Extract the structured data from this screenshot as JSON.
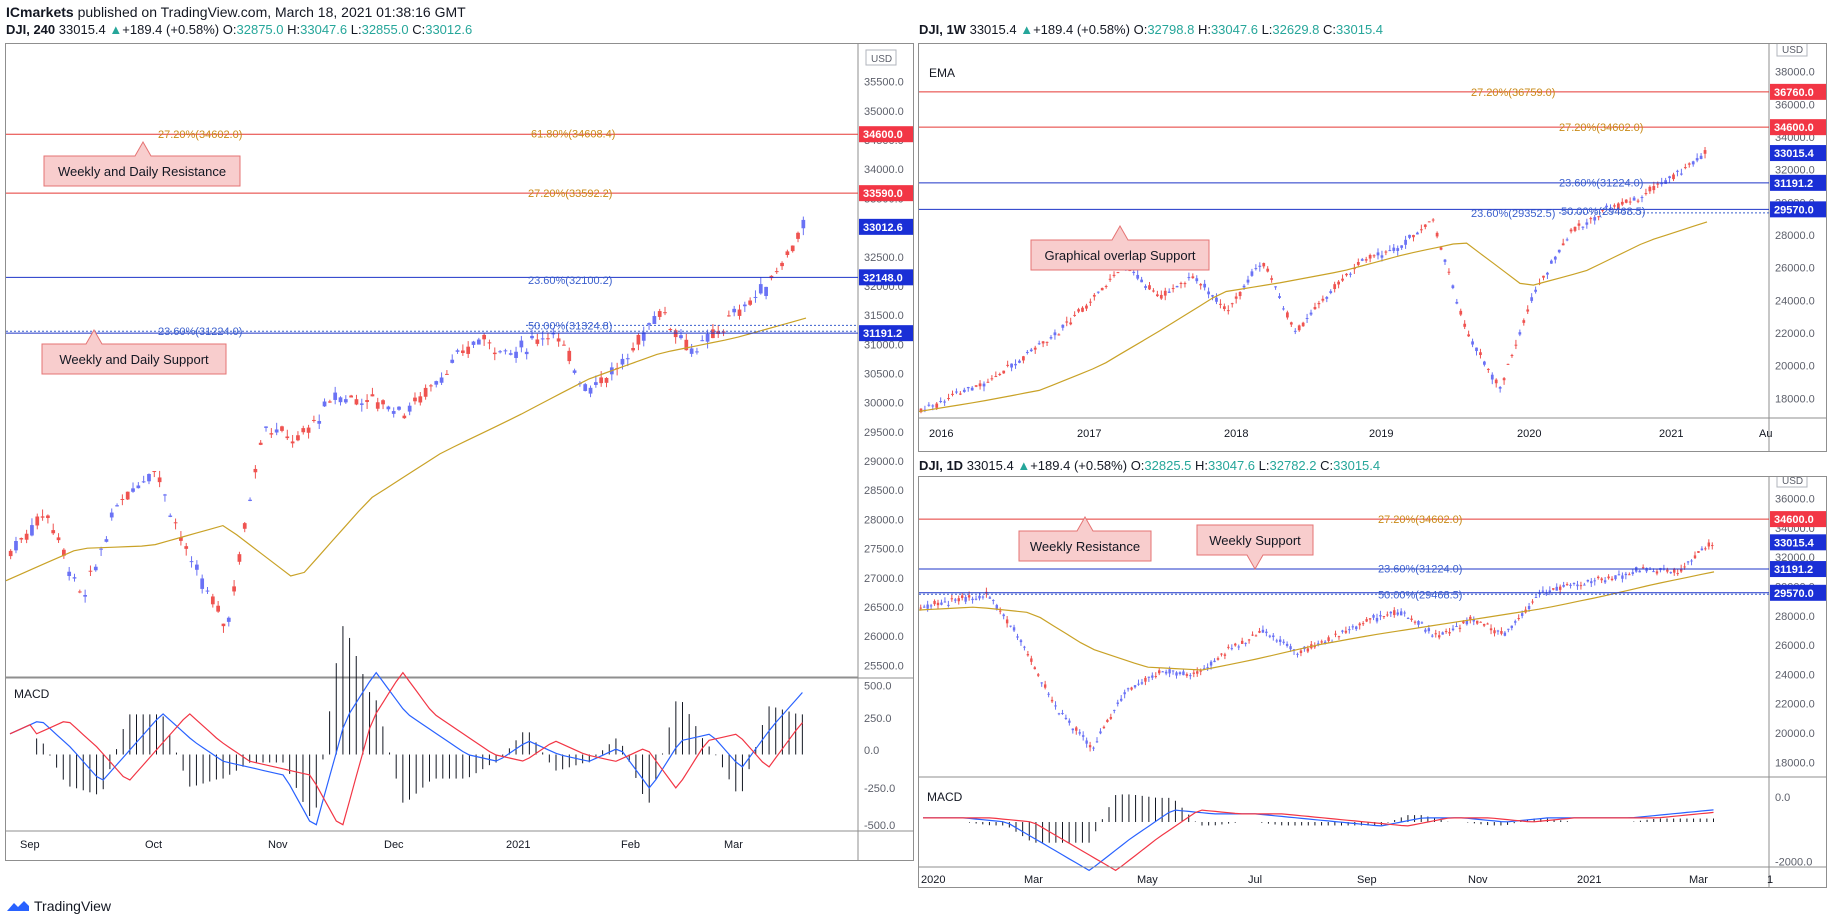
{
  "header": {
    "publisher": "ICmarkets",
    "rest": " published on TradingView.com, March 18, 2021 01:38:16 GMT"
  },
  "footer": {
    "brand": "TradingView"
  },
  "colors": {
    "up": "#6a72f5",
    "down": "#ef5350",
    "ema": "#c9a227",
    "red_line": "#e53935",
    "blue_line": "#1e35c8",
    "fib": "#c98a17",
    "fib_blue": "#3a5fcd",
    "macd": "#2962ff",
    "signal": "#f23645"
  },
  "left": {
    "info": {
      "sym": "DJI, 240",
      "last": "33015.4",
      "change": "+189.4 (+0.58%)",
      "o": "32875.0",
      "h": "33047.6",
      "l": "32855.0",
      "c": "33012.6"
    },
    "currency": "USD",
    "yticks": [
      "35500.0",
      "35000.0",
      "34500.0",
      "34000.0",
      "33500.0",
      "33000.0",
      "32500.0",
      "32000.0",
      "31500.0",
      "31000.0",
      "30500.0",
      "30000.0",
      "29500.0",
      "29000.0",
      "28500.0",
      "28000.0",
      "27500.0",
      "27000.0",
      "26500.0",
      "26000.0",
      "25500.0"
    ],
    "price_tags": [
      {
        "label": "34600.0",
        "kind": "red",
        "value": 34600
      },
      {
        "label": "33590.0",
        "kind": "red",
        "value": 33590
      },
      {
        "label": "33012.6",
        "kind": "blue",
        "value": 33012.6
      },
      {
        "label": "32148.0",
        "kind": "blue",
        "value": 32148
      },
      {
        "label": "31191.2",
        "kind": "blue",
        "value": 31191.2
      }
    ],
    "fib_labels": [
      "27.20%(34602.0)",
      "61.80%(34608.4)",
      "27.20%(33592.2)",
      "23.60%(32100.2)",
      "23.60%(31224.0)",
      "50.00%(31324.8)"
    ],
    "callouts": [
      "Weekly and Daily Resistance",
      "Weekly and Daily Support"
    ],
    "macd_title": "MACD",
    "macd_ticks": [
      "500.0",
      "250.0",
      "0.0",
      "-250.0",
      "-500.0"
    ],
    "xlabels": [
      "Sep",
      "Oct",
      "Nov",
      "Dec",
      "2021",
      "Feb",
      "Mar"
    ]
  },
  "tr": {
    "info": {
      "sym": "DJI, 1W",
      "last": "33015.4",
      "change": "+189.4 (+0.58%)",
      "o": "32798.8",
      "h": "33047.6",
      "l": "32629.8",
      "c": "33015.4"
    },
    "currency": "USD",
    "study": "EMA",
    "yticks": [
      "38000.0",
      "36000.0",
      "34000.0",
      "32000.0",
      "30000.0",
      "28000.0",
      "26000.0",
      "24000.0",
      "22000.0",
      "20000.0",
      "18000.0"
    ],
    "price_tags": [
      {
        "label": "36760.0",
        "kind": "red",
        "value": 36760
      },
      {
        "label": "34600.0",
        "kind": "red",
        "value": 34600
      },
      {
        "label": "33015.4",
        "kind": "blue",
        "value": 33015.4
      },
      {
        "label": "31191.2",
        "kind": "blue",
        "value": 31191.2
      },
      {
        "label": "29570.0",
        "kind": "blue",
        "value": 29570
      }
    ],
    "fib_labels": [
      "27.20%(36759.0)",
      "27.20%(34602.0)",
      "23.60%(31224.0)",
      "23.60%(29352.5)",
      "50.00%(29468.5)"
    ],
    "callouts": [
      "Graphical overlap Support"
    ],
    "xlabels": [
      "2016",
      "2017",
      "2018",
      "2019",
      "2020",
      "2021",
      "Au"
    ]
  },
  "br": {
    "info": {
      "sym": "DJI, 1D",
      "last": "33015.4",
      "change": "+189.4 (+0.58%)",
      "o": "32825.5",
      "h": "33047.6",
      "l": "32782.2",
      "c": "33015.4"
    },
    "currency": "USD",
    "yticks": [
      "36000.0",
      "34000.0",
      "32000.0",
      "30000.0",
      "28000.0",
      "26000.0",
      "24000.0",
      "22000.0",
      "20000.0",
      "18000.0"
    ],
    "price_tags": [
      {
        "label": "34600.0",
        "kind": "red",
        "value": 34600
      },
      {
        "label": "33015.4",
        "kind": "blue",
        "value": 33015.4
      },
      {
        "label": "31191.2",
        "kind": "blue",
        "value": 31191.2
      },
      {
        "label": "29570.0",
        "kind": "blue",
        "value": 29570
      }
    ],
    "fib_labels": [
      "27.20%(34602.0)",
      "23.60%(31224.0)",
      "50.00%(29468.5)"
    ],
    "callouts": [
      "Weekly Resistance",
      "Weekly Support"
    ],
    "macd_title": "MACD",
    "macd_ticks": [
      "0.0",
      "-2000.0"
    ],
    "xlabels": [
      "2020",
      "Mar",
      "May",
      "Jul",
      "Sep",
      "Nov",
      "2021",
      "Mar",
      "1"
    ]
  },
  "chart_data": [
    {
      "type": "candlestick",
      "title": "DJI, 240",
      "ylim": [
        25500,
        35500
      ],
      "x_range": [
        "Sep 2020",
        "Mar 2021"
      ],
      "ohlc_last": {
        "o": 32875.0,
        "h": 33047.6,
        "l": 32855.0,
        "c": 33012.6
      },
      "price_path": [
        27450,
        28150,
        26600,
        28300,
        28900,
        27250,
        26150,
        29600,
        29350,
        30100,
        30050,
        29850,
        30500,
        31100,
        30850,
        31250,
        30250,
        30650,
        31600,
        30850,
        31450,
        32000,
        33000
      ],
      "ema_path": [
        26950,
        27500,
        27550,
        27900,
        26950,
        28350,
        29150,
        29750,
        30400,
        30850,
        31100,
        31450
      ],
      "levels": [
        34600,
        33590,
        32148,
        31191.2
      ],
      "macd_ylim": [
        -500,
        500
      ]
    },
    {
      "type": "candlestick",
      "title": "DJI, 1W",
      "ylim": [
        17000,
        39000
      ],
      "x_range": [
        "2016",
        "2021"
      ],
      "price_path": [
        17200,
        18200,
        19000,
        20500,
        22000,
        24000,
        26200,
        24200,
        25500,
        23300,
        26500,
        22000,
        24500,
        26500,
        27200,
        29000,
        22000,
        18600,
        24500,
        28000,
        29500,
        30200,
        31500,
        33015
      ],
      "ema_path": [
        17200,
        17800,
        18500,
        20000,
        22200,
        24500,
        25100,
        25800,
        26800,
        27600,
        24800,
        25800,
        27600,
        28800
      ],
      "levels": [
        36760,
        34600,
        31191.2,
        29570
      ]
    },
    {
      "type": "candlestick",
      "title": "DJI, 1D",
      "ylim": [
        17000,
        37000
      ],
      "x_range": [
        "Jan 2020",
        "Mar 2021"
      ],
      "price_path": [
        28500,
        29100,
        29400,
        26000,
        21500,
        19000,
        23000,
        24200,
        24000,
        25800,
        27000,
        25500,
        26500,
        27700,
        28300,
        26500,
        27800,
        26700,
        29500,
        30200,
        30500,
        31200,
        31000,
        33000
      ],
      "ema_path": [
        28400,
        28600,
        28200,
        25800,
        24500,
        24300,
        25100,
        26000,
        26700,
        27300,
        27900,
        28500,
        29300,
        30200,
        31000
      ],
      "levels": [
        34600,
        31191.2,
        29570
      ]
    }
  ]
}
